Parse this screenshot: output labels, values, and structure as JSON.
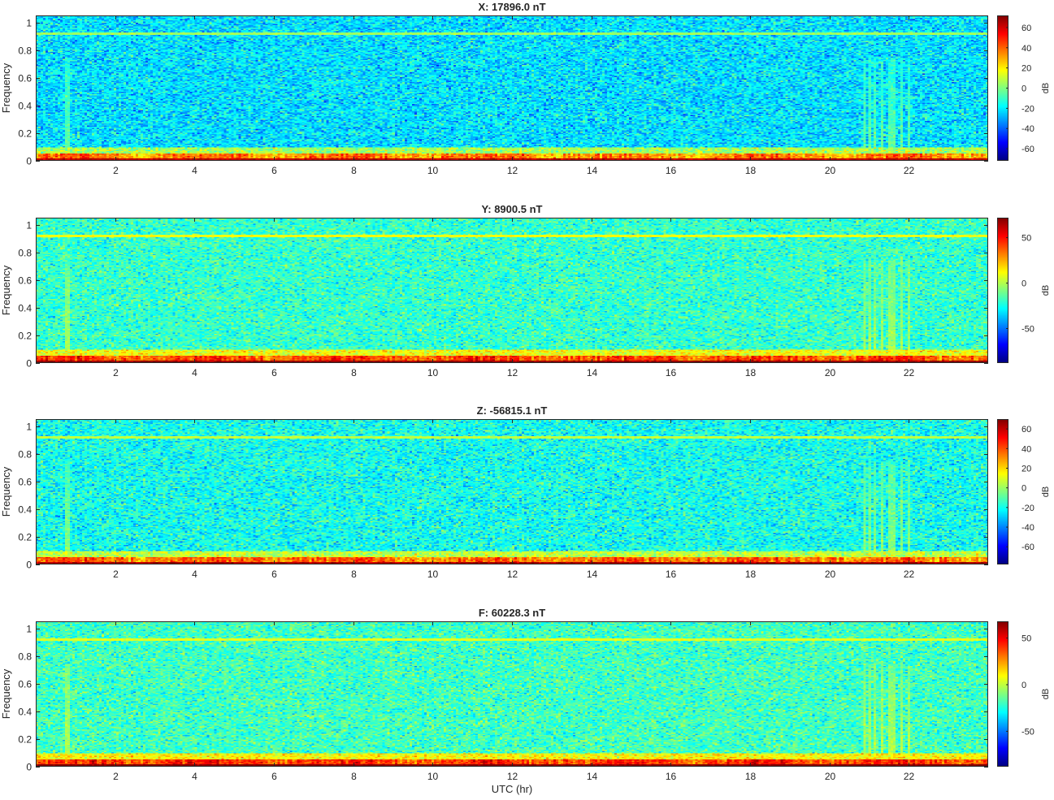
{
  "chart_data": [
    {
      "type": "heatmap",
      "title": "X: 17896.0 nT",
      "ylabel": "Frequency",
      "xlabel": "",
      "xlim": [
        0,
        24
      ],
      "ylim": [
        0,
        1.05
      ],
      "xticks": [
        2,
        4,
        6,
        8,
        10,
        12,
        14,
        16,
        18,
        20,
        22
      ],
      "yticks": [
        0,
        0.2,
        0.4,
        0.6,
        0.8,
        1
      ],
      "colorbar": {
        "label": "dB",
        "range": [
          -72,
          72
        ],
        "ticks": [
          60,
          40,
          20,
          0,
          -20,
          -40,
          -60
        ]
      },
      "colormap": "jet",
      "features": {
        "background_db": -22,
        "low_freq_band_db": 45,
        "line_freq": 0.92,
        "line_db": 5
      }
    },
    {
      "type": "heatmap",
      "title": "Y: 8900.5 nT",
      "ylabel": "Frequency",
      "xlabel": "",
      "xlim": [
        0,
        24
      ],
      "ylim": [
        0,
        1.05
      ],
      "xticks": [
        2,
        4,
        6,
        8,
        10,
        12,
        14,
        16,
        18,
        20,
        22
      ],
      "yticks": [
        0,
        0.2,
        0.4,
        0.6,
        0.8,
        1
      ],
      "colorbar": {
        "label": "dB",
        "range": [
          -88,
          72
        ],
        "ticks": [
          50,
          0,
          -50
        ]
      },
      "colormap": "jet",
      "features": {
        "background_db": -20,
        "low_freq_band_db": 50,
        "line_freq": 0.92,
        "line_db": 10
      }
    },
    {
      "type": "heatmap",
      "title": "Z: -56815.1 nT",
      "ylabel": "Frequency",
      "xlabel": "",
      "xlim": [
        0,
        24
      ],
      "ylim": [
        0,
        1.05
      ],
      "xticks": [
        2,
        4,
        6,
        8,
        10,
        12,
        14,
        16,
        18,
        20,
        22
      ],
      "yticks": [
        0,
        0.2,
        0.4,
        0.6,
        0.8,
        1
      ],
      "colorbar": {
        "label": "dB",
        "range": [
          -78,
          70
        ],
        "ticks": [
          60,
          40,
          20,
          0,
          -20,
          -40,
          -60
        ]
      },
      "colormap": "jet",
      "features": {
        "background_db": -20,
        "low_freq_band_db": 45,
        "line_freq": 0.92,
        "line_db": 5
      }
    },
    {
      "type": "heatmap",
      "title": "F: 60228.3 nT",
      "ylabel": "Frequency",
      "xlabel": "UTC (hr)",
      "xlim": [
        0,
        24
      ],
      "ylim": [
        0,
        1.05
      ],
      "xticks": [
        2,
        4,
        6,
        8,
        10,
        12,
        14,
        16,
        18,
        20,
        22
      ],
      "yticks": [
        0,
        0.2,
        0.4,
        0.6,
        0.8,
        1
      ],
      "colorbar": {
        "label": "dB",
        "range": [
          -88,
          68
        ],
        "ticks": [
          50,
          0,
          -50
        ]
      },
      "colormap": "jet",
      "features": {
        "background_db": -20,
        "low_freq_band_db": 50,
        "line_freq": 0.92,
        "line_db": 5
      }
    }
  ]
}
